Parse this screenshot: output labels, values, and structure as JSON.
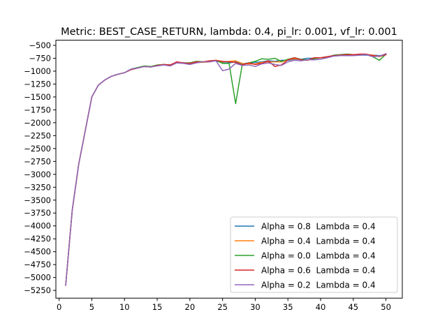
{
  "chart_data": {
    "type": "line",
    "title": "Metric: BEST_CASE_RETURN, lambda: 0.4, pi_lr: 0.001, vf_lr: 0.001",
    "xlabel": "",
    "ylabel": "",
    "xlim": [
      -0.5,
      52.5
    ],
    "ylim": [
      -5400,
      -400
    ],
    "xticks": [
      0,
      5,
      10,
      15,
      20,
      25,
      30,
      35,
      40,
      45,
      50
    ],
    "yticks": [
      -500,
      -750,
      -1000,
      -1250,
      -1500,
      -1750,
      -2000,
      -2250,
      -2500,
      -2750,
      -3000,
      -3250,
      -3500,
      -3750,
      -4000,
      -4250,
      -4500,
      -4750,
      -5000,
      -5250
    ],
    "legend_position": "lower-right",
    "grid": false,
    "x": [
      1,
      2,
      3,
      4,
      5,
      6,
      7,
      8,
      9,
      10,
      11,
      12,
      13,
      14,
      15,
      16,
      17,
      18,
      19,
      20,
      21,
      22,
      23,
      24,
      25,
      26,
      27,
      28,
      29,
      30,
      31,
      32,
      33,
      34,
      35,
      36,
      37,
      38,
      39,
      40,
      41,
      42,
      43,
      44,
      45,
      46,
      47,
      48,
      49,
      50
    ],
    "series": [
      {
        "name": "Alpha = 0.8  Lambda = 0.4",
        "color": "#1f77b4",
        "values": [
          -5150,
          -3700,
          -2800,
          -2150,
          -1500,
          -1270,
          -1170,
          -1100,
          -1060,
          -1030,
          -970,
          -940,
          -910,
          -920,
          -890,
          -880,
          -880,
          -830,
          -840,
          -840,
          -820,
          -820,
          -810,
          -800,
          -840,
          -840,
          -820,
          -860,
          -840,
          -830,
          -820,
          -800,
          -810,
          -790,
          -790,
          -770,
          -770,
          -750,
          -750,
          -740,
          -730,
          -700,
          -700,
          -690,
          -690,
          -690,
          -690,
          -690,
          -700,
          -680
        ]
      },
      {
        "name": "Alpha = 0.4  Lambda = 0.4",
        "color": "#ff7f0e",
        "values": [
          -5150,
          -3700,
          -2800,
          -2150,
          -1500,
          -1270,
          -1170,
          -1100,
          -1060,
          -1030,
          -970,
          -940,
          -910,
          -920,
          -890,
          -870,
          -880,
          -830,
          -840,
          -850,
          -830,
          -830,
          -820,
          -790,
          -820,
          -810,
          -800,
          -850,
          -860,
          -860,
          -830,
          -820,
          -820,
          -820,
          -780,
          -760,
          -770,
          -790,
          -750,
          -740,
          -720,
          -700,
          -690,
          -690,
          -680,
          -680,
          -680,
          -690,
          -720,
          -680
        ]
      },
      {
        "name": "Alpha = 0.0  Lambda = 0.4",
        "color": "#2ca02c",
        "values": [
          -5150,
          -3700,
          -2800,
          -2150,
          -1500,
          -1270,
          -1170,
          -1100,
          -1060,
          -1030,
          -960,
          -930,
          -900,
          -910,
          -880,
          -870,
          -880,
          -830,
          -840,
          -840,
          -810,
          -820,
          -810,
          -790,
          -850,
          -850,
          -1630,
          -880,
          -840,
          -810,
          -760,
          -770,
          -750,
          -810,
          -770,
          -740,
          -770,
          -780,
          -760,
          -740,
          -730,
          -690,
          -680,
          -670,
          -680,
          -680,
          -680,
          -720,
          -790,
          -670
        ]
      },
      {
        "name": "Alpha = 0.6  Lambda = 0.4",
        "color": "#d62728",
        "values": [
          -5150,
          -3700,
          -2800,
          -2150,
          -1500,
          -1270,
          -1170,
          -1100,
          -1060,
          -1030,
          -970,
          -940,
          -910,
          -920,
          -890,
          -870,
          -880,
          -820,
          -840,
          -850,
          -820,
          -820,
          -800,
          -790,
          -810,
          -820,
          -830,
          -880,
          -840,
          -870,
          -850,
          -800,
          -910,
          -880,
          -780,
          -740,
          -780,
          -790,
          -740,
          -740,
          -720,
          -700,
          -690,
          -680,
          -680,
          -670,
          -670,
          -700,
          -710,
          -680
        ]
      },
      {
        "name": "Alpha = 0.2  Lambda = 0.4",
        "color": "#9467bd",
        "values": [
          -5150,
          -3700,
          -2800,
          -2150,
          -1500,
          -1270,
          -1170,
          -1100,
          -1060,
          -1030,
          -960,
          -940,
          -910,
          -920,
          -900,
          -880,
          -900,
          -840,
          -850,
          -870,
          -840,
          -820,
          -820,
          -800,
          -990,
          -960,
          -850,
          -890,
          -880,
          -910,
          -860,
          -840,
          -870,
          -890,
          -820,
          -790,
          -800,
          -780,
          -780,
          -770,
          -740,
          -710,
          -700,
          -700,
          -700,
          -690,
          -680,
          -720,
          -710,
          -660
        ]
      }
    ]
  }
}
